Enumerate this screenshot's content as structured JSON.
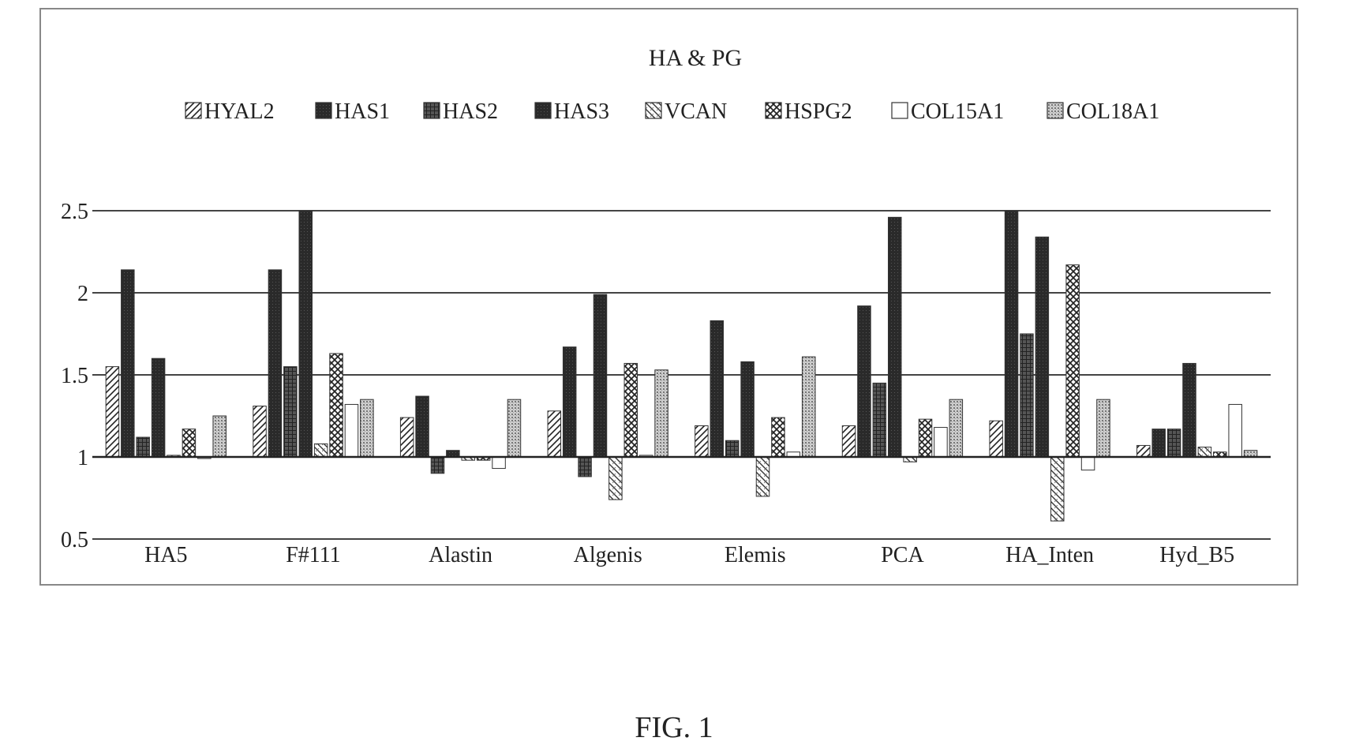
{
  "figure": {
    "caption": "FIG. 1"
  },
  "chart_data": {
    "type": "bar",
    "title": "HA & PG",
    "xlabel": "",
    "ylabel": "",
    "ylim": [
      0.5,
      2.5
    ],
    "yticks": [
      "0.5",
      "1",
      "1.5",
      "2",
      "2.5"
    ],
    "baseline": 1,
    "grid": true,
    "legend_position": "top",
    "categories": [
      "HA5",
      "F#111",
      "Alastin",
      "Algenis",
      "Elemis",
      "PCA",
      "HA_Inten",
      "Hyd_B5"
    ],
    "series": [
      {
        "name": "HYAL2",
        "pattern": "diag",
        "values": [
          1.55,
          1.31,
          1.24,
          1.28,
          1.19,
          1.19,
          1.22,
          1.07
        ]
      },
      {
        "name": "HAS1",
        "pattern": "dark",
        "values": [
          2.14,
          2.14,
          1.37,
          1.67,
          1.83,
          1.92,
          2.5,
          1.17
        ]
      },
      {
        "name": "HAS2",
        "pattern": "grid",
        "values": [
          1.12,
          1.55,
          0.9,
          0.88,
          1.1,
          1.45,
          1.75,
          1.17
        ]
      },
      {
        "name": "HAS3",
        "pattern": "dark",
        "values": [
          1.6,
          2.5,
          1.04,
          1.99,
          1.58,
          2.46,
          2.34,
          1.57
        ]
      },
      {
        "name": "VCAN",
        "pattern": "diagrev",
        "values": [
          1.01,
          1.08,
          0.98,
          0.74,
          0.76,
          0.97,
          0.61,
          1.06
        ]
      },
      {
        "name": "HSPG2",
        "pattern": "crosshatch",
        "values": [
          1.17,
          1.63,
          0.98,
          1.57,
          1.24,
          1.23,
          2.17,
          1.03
        ]
      },
      {
        "name": "COL15A1",
        "pattern": "white",
        "values": [
          1.0,
          1.32,
          0.93,
          1.01,
          1.03,
          1.18,
          0.92,
          1.32
        ]
      },
      {
        "name": "COL18A1",
        "pattern": "dots",
        "values": [
          1.25,
          1.35,
          1.35,
          1.53,
          1.61,
          1.35,
          1.35,
          1.04
        ]
      }
    ]
  }
}
